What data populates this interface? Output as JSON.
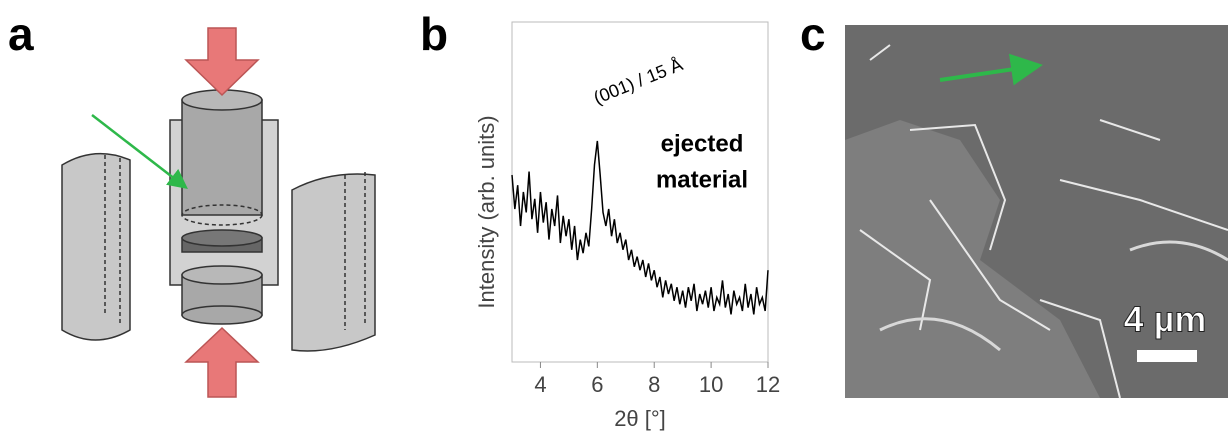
{
  "panel_labels": [
    "a",
    "b",
    "c"
  ],
  "scale_bar": "4 µm",
  "chart_data": {
    "type": "line",
    "xlabel": "2θ [°]",
    "ylabel": "Intensity (arb. units)",
    "annotations": [
      "(001) / 15 Å",
      "ejected",
      "material"
    ],
    "xlim": [
      3,
      12
    ],
    "xticks": [
      4,
      6,
      8,
      10,
      12
    ],
    "ylim": [
      0,
      100
    ],
    "x": [
      3.0,
      3.1,
      3.2,
      3.3,
      3.4,
      3.5,
      3.6,
      3.7,
      3.8,
      3.9,
      4.0,
      4.1,
      4.2,
      4.3,
      4.4,
      4.5,
      4.6,
      4.7,
      4.8,
      4.9,
      5.0,
      5.1,
      5.2,
      5.3,
      5.4,
      5.5,
      5.6,
      5.7,
      5.8,
      5.9,
      6.0,
      6.1,
      6.2,
      6.3,
      6.4,
      6.5,
      6.6,
      6.7,
      6.8,
      6.9,
      7.0,
      7.1,
      7.2,
      7.3,
      7.4,
      7.5,
      7.6,
      7.7,
      7.8,
      7.9,
      8.0,
      8.1,
      8.2,
      8.3,
      8.4,
      8.5,
      8.6,
      8.7,
      8.8,
      8.9,
      9.0,
      9.1,
      9.2,
      9.3,
      9.4,
      9.5,
      9.6,
      9.7,
      9.8,
      9.9,
      10.0,
      10.1,
      10.2,
      10.3,
      10.4,
      10.5,
      10.6,
      10.7,
      10.8,
      10.9,
      11.0,
      11.1,
      11.2,
      11.3,
      11.4,
      11.5,
      11.6,
      11.7,
      11.8,
      11.9,
      12.0
    ],
    "series": [
      {
        "color": "#000000",
        "values": [
          55,
          45,
          52,
          40,
          50,
          44,
          56,
          42,
          48,
          38,
          50,
          41,
          47,
          36,
          45,
          40,
          49,
          35,
          43,
          37,
          42,
          33,
          40,
          30,
          36,
          32,
          38,
          34,
          45,
          58,
          65,
          55,
          44,
          40,
          45,
          37,
          42,
          35,
          38,
          33,
          36,
          30,
          33,
          28,
          31,
          27,
          30,
          25,
          29,
          24,
          27,
          22,
          25,
          19,
          24,
          20,
          23,
          18,
          22,
          17,
          21,
          16,
          22,
          18,
          23,
          15,
          20,
          17,
          21,
          16,
          22,
          15,
          19,
          17,
          24,
          16,
          20,
          14,
          21,
          17,
          19,
          15,
          23,
          16,
          20,
          14,
          22,
          17,
          19,
          15,
          27
        ]
      }
    ]
  }
}
